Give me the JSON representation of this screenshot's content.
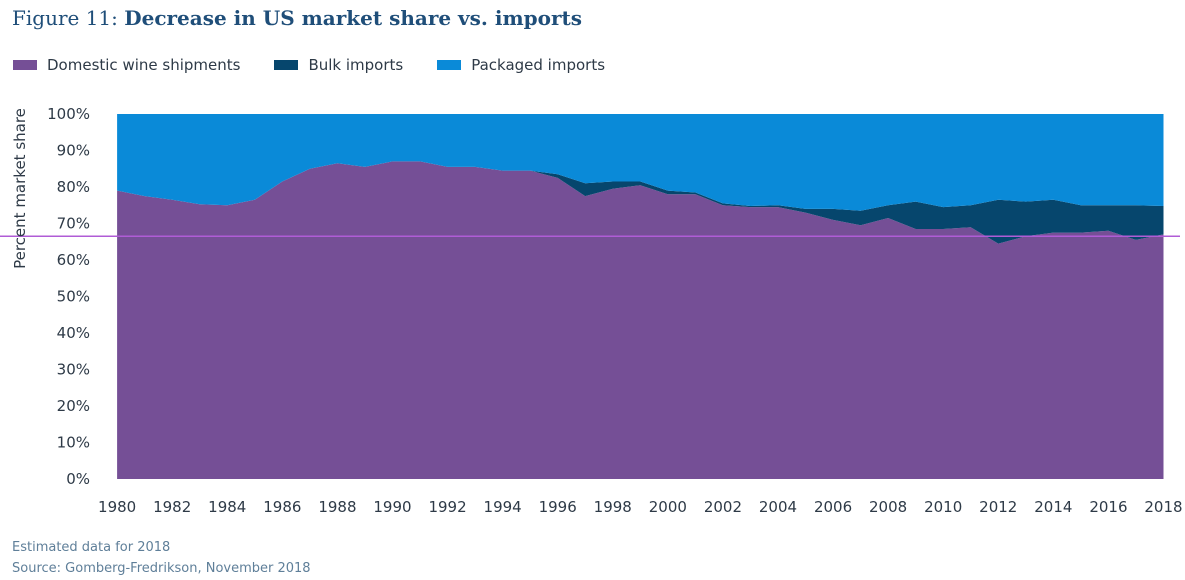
{
  "figure": {
    "prefix": "Figure 11:",
    "title": "Decrease in US market share vs. imports"
  },
  "notes": {
    "line1": "Estimated data for 2018",
    "line2": "Source: Gomberg-Fredrikson, November 2018"
  },
  "chart_data": {
    "type": "area",
    "stacked": true,
    "title": "Decrease in US market share vs. imports",
    "xlabel": "",
    "ylabel": "Percent market share",
    "x": [
      1980,
      1981,
      1982,
      1983,
      1984,
      1985,
      1986,
      1987,
      1988,
      1989,
      1990,
      1991,
      1992,
      1993,
      1994,
      1995,
      1996,
      1997,
      1998,
      1999,
      2000,
      2001,
      2002,
      2003,
      2004,
      2005,
      2006,
      2007,
      2008,
      2009,
      2010,
      2011,
      2012,
      2013,
      2014,
      2015,
      2016,
      2017,
      2018
    ],
    "x_tick_labels": [
      "1980",
      "1982",
      "1984",
      "1986",
      "1988",
      "1990",
      "1992",
      "1994",
      "1996",
      "1998",
      "2000",
      "2002",
      "2004",
      "2006",
      "2008",
      "2010",
      "2012",
      "2014",
      "2016",
      "2018"
    ],
    "x_tick_values": [
      1980,
      1982,
      1984,
      1986,
      1988,
      1990,
      1992,
      1994,
      1996,
      1998,
      2000,
      2002,
      2004,
      2006,
      2008,
      2010,
      2012,
      2014,
      2016,
      2018
    ],
    "y_tick_labels": [
      "0%",
      "10%",
      "20%",
      "30%",
      "40%",
      "50%",
      "60%",
      "70%",
      "80%",
      "90%",
      "100%"
    ],
    "y_tick_values": [
      0,
      10,
      20,
      30,
      40,
      50,
      60,
      70,
      80,
      90,
      100
    ],
    "ylim": [
      0,
      100
    ],
    "xlim": [
      1979.85,
      2018.6
    ],
    "grid": false,
    "legend_position": "top-left",
    "reference_line": {
      "y": 66.5,
      "color": "#b05cd6"
    },
    "series": [
      {
        "name": "Domestic wine shipments",
        "color": "#754f96",
        "values": [
          79,
          77.5,
          76.5,
          75.3,
          75,
          76.5,
          81.5,
          85,
          86.5,
          85.5,
          87,
          87,
          85.5,
          85.5,
          84.5,
          84.5,
          82.5,
          77.5,
          79.5,
          80.5,
          78,
          78,
          75,
          74.5,
          74.5,
          73,
          71,
          69.5,
          71.5,
          68.5,
          68.5,
          69,
          64.5,
          66.5,
          67.5,
          67.5,
          68,
          65.5,
          67
        ]
      },
      {
        "name": "Bulk imports",
        "color": "#06466d",
        "values": [
          0,
          0,
          0,
          0,
          0,
          0,
          0,
          0,
          0,
          0,
          0,
          0,
          0,
          0,
          0,
          0,
          1,
          3.5,
          2,
          1,
          1,
          0.5,
          0.5,
          0.3,
          0.5,
          1,
          3,
          4,
          3.5,
          7.5,
          6,
          6,
          12,
          9.5,
          9,
          7.5,
          7,
          9.5,
          7.8
        ]
      },
      {
        "name": "Packaged imports",
        "color": "#0a8ad8",
        "values": [
          21,
          22.5,
          23.5,
          24.7,
          25,
          23.5,
          18.5,
          15,
          13.5,
          14.5,
          13,
          13,
          14.5,
          14.5,
          15.5,
          15.5,
          16.5,
          19,
          18.5,
          18.5,
          21,
          21.5,
          24.5,
          25.2,
          25,
          26,
          26,
          26.5,
          25,
          24,
          25.5,
          25,
          23.5,
          24,
          23.5,
          25,
          25,
          25,
          25.2
        ]
      }
    ]
  }
}
